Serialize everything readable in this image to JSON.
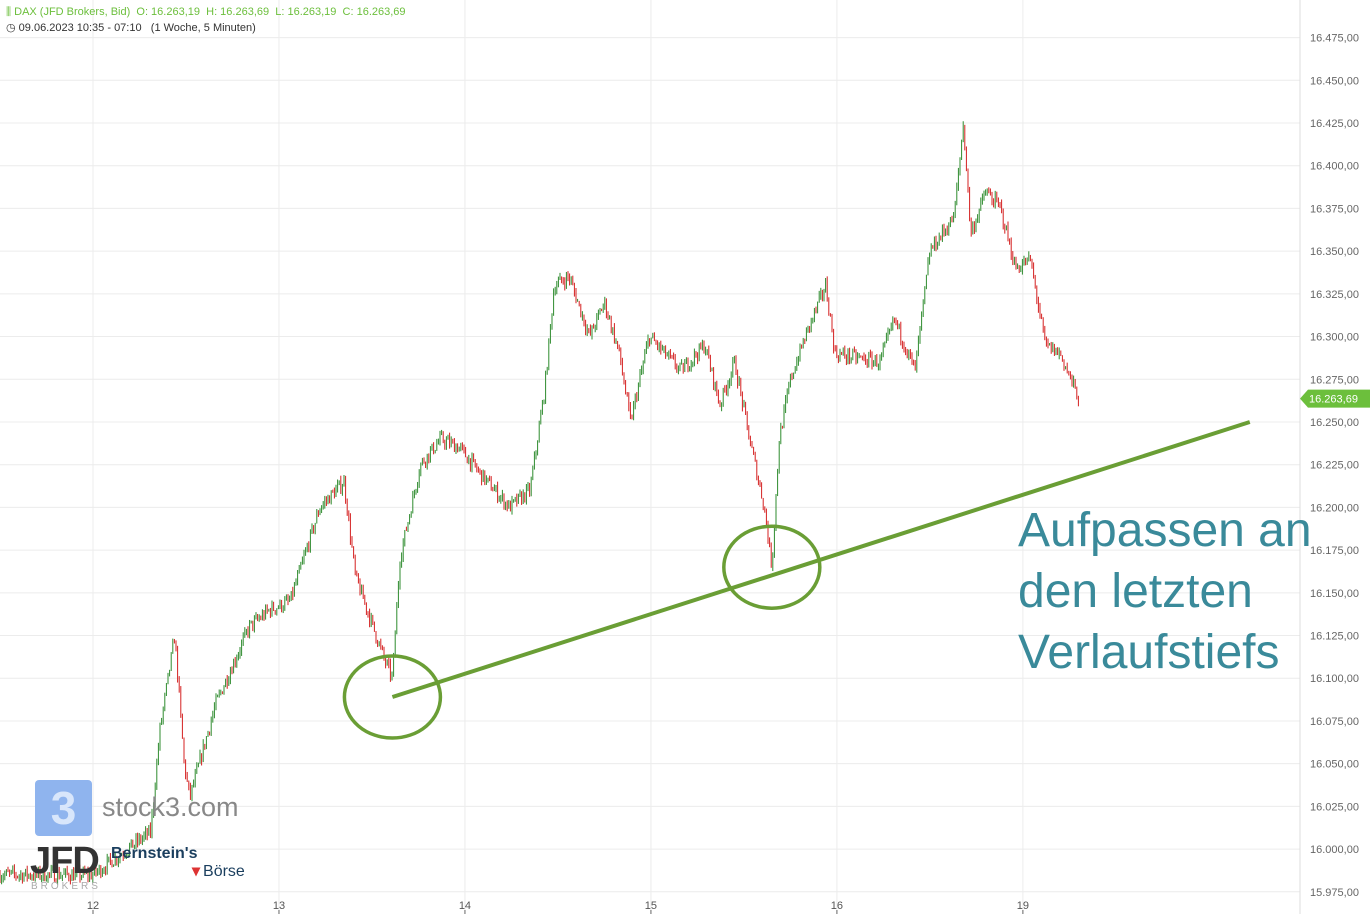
{
  "header": {
    "symbol": "DAX (JFD Brokers, Bid)",
    "open": "O: 16.263,19",
    "high": "H: 16.263,69",
    "low": "L: 16.263,19",
    "close": "C: 16.263,69",
    "range": "09.06.2023 10:35 - 07:10",
    "period": "(1 Woche, 5 Minuten)"
  },
  "annotation": [
    "Aufpassen an",
    "den letzten",
    "Verlaufstiefs"
  ],
  "logos": {
    "stock3": "stock3.com",
    "stock3_mark": "3",
    "jfd": "JFD",
    "jfd_sub": "BROKERS",
    "bernstein": "Bernstein's",
    "borse": "Börse"
  },
  "colors": {
    "up": "#2e8b2e",
    "down": "#d42020",
    "line": "#6a9e35",
    "price_tag": "#6cbf3c",
    "annotation": "#3a8a9a"
  },
  "chart_data": {
    "type": "candlestick",
    "title": "DAX (JFD Brokers, Bid)",
    "x_ticks": [
      {
        "v": 0,
        "label": "12"
      },
      {
        "v": 1,
        "label": "13"
      },
      {
        "v": 2,
        "label": "14"
      },
      {
        "v": 3,
        "label": "15"
      },
      {
        "v": 4,
        "label": "16"
      },
      {
        "v": 5,
        "label": "19"
      }
    ],
    "xlim": [
      -0.5,
      6.49
    ],
    "ylim": [
      15962,
      16497
    ],
    "y_ticks": [
      15975,
      16000,
      16025,
      16050,
      16075,
      16100,
      16125,
      16150,
      16175,
      16200,
      16225,
      16250,
      16275,
      16300,
      16325,
      16350,
      16375,
      16400,
      16425,
      16450,
      16475
    ],
    "y_tick_labels": [
      "15.975,00",
      "16.000,00",
      "16.025,00",
      "16.050,00",
      "16.075,00",
      "16.100,00",
      "16.125,00",
      "16.150,00",
      "16.175,00",
      "16.200,00",
      "16.225,00",
      "16.250,00",
      "16.275,00",
      "16.300,00",
      "16.325,00",
      "16.350,00",
      "16.375,00",
      "16.400,00",
      "16.425,00",
      "16.450,00",
      "16.475,00"
    ],
    "price_path": [
      [
        -0.5,
        15985
      ],
      [
        0,
        15985
      ],
      [
        0.31,
        16010
      ],
      [
        0.36,
        16070
      ],
      [
        0.44,
        16125
      ],
      [
        0.49,
        16050
      ],
      [
        0.52,
        16030
      ],
      [
        0.66,
        16085
      ],
      [
        0.84,
        16130
      ],
      [
        0.95,
        16140
      ],
      [
        1.06,
        16145
      ],
      [
        1.22,
        16200
      ],
      [
        1.35,
        16215
      ],
      [
        1.41,
        16160
      ],
      [
        1.57,
        16110
      ],
      [
        1.61,
        16100
      ],
      [
        1.65,
        16170
      ],
      [
        1.76,
        16225
      ],
      [
        1.87,
        16240
      ],
      [
        1.97,
        16235
      ],
      [
        2.08,
        16220
      ],
      [
        2.24,
        16200
      ],
      [
        2.35,
        16210
      ],
      [
        2.43,
        16270
      ],
      [
        2.48,
        16330
      ],
      [
        2.56,
        16335
      ],
      [
        2.67,
        16300
      ],
      [
        2.75,
        16320
      ],
      [
        2.83,
        16290
      ],
      [
        2.89,
        16250
      ],
      [
        2.99,
        16300
      ],
      [
        3.16,
        16280
      ],
      [
        3.29,
        16295
      ],
      [
        3.37,
        16260
      ],
      [
        3.45,
        16285
      ],
      [
        3.53,
        16240
      ],
      [
        3.61,
        16200
      ],
      [
        3.65,
        16165
      ],
      [
        3.69,
        16240
      ],
      [
        3.75,
        16275
      ],
      [
        3.83,
        16300
      ],
      [
        3.94,
        16330
      ],
      [
        3.99,
        16290
      ],
      [
        4.23,
        16285
      ],
      [
        4.31,
        16310
      ],
      [
        4.42,
        16280
      ],
      [
        4.5,
        16350
      ],
      [
        4.63,
        16370
      ],
      [
        4.68,
        16425
      ],
      [
        4.72,
        16360
      ],
      [
        4.8,
        16385
      ],
      [
        4.88,
        16375
      ],
      [
        4.96,
        16340
      ],
      [
        5.04,
        16345
      ],
      [
        5.12,
        16295
      ],
      [
        5.2,
        16290
      ],
      [
        5.3,
        16263.69
      ]
    ],
    "last_price": 16263.69,
    "last_price_label": "16.263,69",
    "trendline": [
      [
        1.61,
        16089
      ],
      [
        6.22,
        16250
      ]
    ],
    "circles": [
      [
        1.61,
        16089
      ],
      [
        3.65,
        16165
      ]
    ]
  }
}
